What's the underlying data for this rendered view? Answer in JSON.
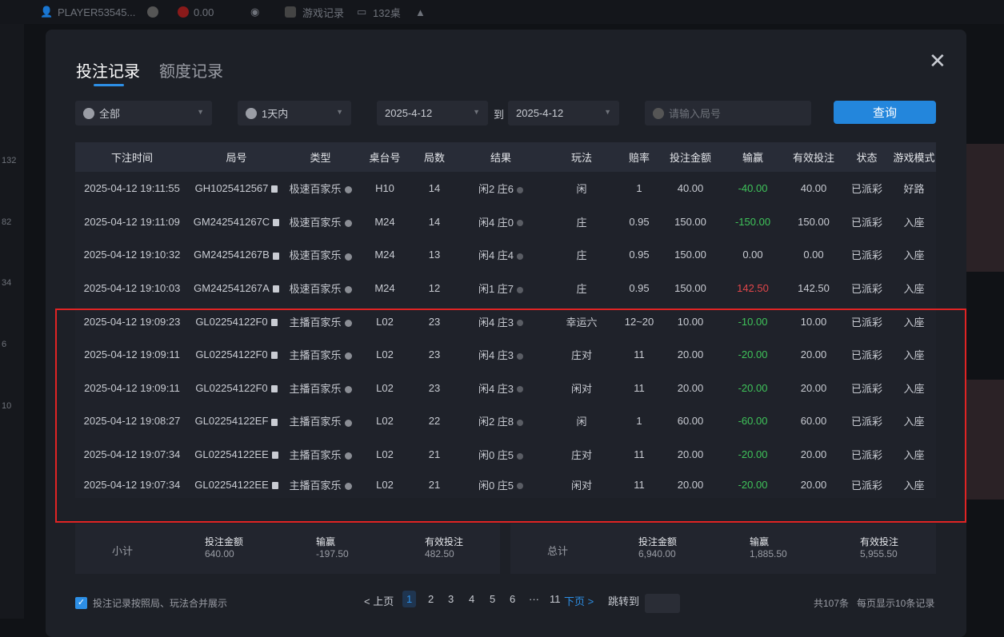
{
  "topbar": {
    "player": "PLAYER53545...",
    "balance": "0.00",
    "game_records": "游戏记录",
    "tables": "132桌"
  },
  "side_numbers": [
    "132",
    "82",
    "34",
    "6",
    "10"
  ],
  "tabs": [
    {
      "label": "投注记录",
      "active": true
    },
    {
      "label": "额度记录",
      "active": false
    }
  ],
  "filters": {
    "type": "全部",
    "period": "1天内",
    "date_from": "2025-4-12",
    "to_label": "到",
    "date_to": "2025-4-12",
    "round_placeholder": "请输入局号",
    "query_button": "查询"
  },
  "columns": [
    "下注时间",
    "局号",
    "类型",
    "桌台号",
    "局数",
    "结果",
    "玩法",
    "赔率",
    "投注金额",
    "输赢",
    "有效投注",
    "状态",
    "游戏模式"
  ],
  "rows": [
    [
      "2025-04-12 19:11:55",
      "GH1025412567",
      "极速百家乐",
      "H10",
      "14",
      "闲2 庄6",
      "闲",
      "1",
      "40.00",
      "-40.00",
      "40.00",
      "已派彩",
      "好路"
    ],
    [
      "2025-04-12 19:11:09",
      "GM242541267C",
      "极速百家乐",
      "M24",
      "14",
      "闲4 庄0",
      "庄",
      "0.95",
      "150.00",
      "-150.00",
      "150.00",
      "已派彩",
      "入座"
    ],
    [
      "2025-04-12 19:10:32",
      "GM242541267B",
      "极速百家乐",
      "M24",
      "13",
      "闲4 庄4",
      "庄",
      "0.95",
      "150.00",
      "0.00",
      "0.00",
      "已派彩",
      "入座"
    ],
    [
      "2025-04-12 19:10:03",
      "GM242541267A",
      "极速百家乐",
      "M24",
      "12",
      "闲1 庄7",
      "庄",
      "0.95",
      "150.00",
      "142.50",
      "142.50",
      "已派彩",
      "入座"
    ],
    [
      "2025-04-12 19:09:23",
      "GL02254122F0",
      "主播百家乐",
      "L02",
      "23",
      "闲4 庄3",
      "幸运六",
      "12~20",
      "10.00",
      "-10.00",
      "10.00",
      "已派彩",
      "入座"
    ],
    [
      "2025-04-12 19:09:11",
      "GL02254122F0",
      "主播百家乐",
      "L02",
      "23",
      "闲4 庄3",
      "庄对",
      "11",
      "20.00",
      "-20.00",
      "20.00",
      "已派彩",
      "入座"
    ],
    [
      "2025-04-12 19:09:11",
      "GL02254122F0",
      "主播百家乐",
      "L02",
      "23",
      "闲4 庄3",
      "闲对",
      "11",
      "20.00",
      "-20.00",
      "20.00",
      "已派彩",
      "入座"
    ],
    [
      "2025-04-12 19:08:27",
      "GL02254122EF",
      "主播百家乐",
      "L02",
      "22",
      "闲2 庄8",
      "闲",
      "1",
      "60.00",
      "-60.00",
      "60.00",
      "已派彩",
      "入座"
    ],
    [
      "2025-04-12 19:07:34",
      "GL02254122EE",
      "主播百家乐",
      "L02",
      "21",
      "闲0 庄5",
      "庄对",
      "11",
      "20.00",
      "-20.00",
      "20.00",
      "已派彩",
      "入座"
    ],
    [
      "2025-04-12 19:07:34",
      "GL02254122EE",
      "主播百家乐",
      "L02",
      "21",
      "闲0 庄5",
      "闲对",
      "11",
      "20.00",
      "-20.00",
      "20.00",
      "已派彩",
      "入座"
    ]
  ],
  "subtotal": {
    "label": "小计",
    "bet_label": "投注金额",
    "bet": "640.00",
    "win_label": "输赢",
    "win": "-197.50",
    "valid_label": "有效投注",
    "valid": "482.50"
  },
  "total": {
    "label": "总计",
    "bet_label": "投注金额",
    "bet": "6,940.00",
    "win_label": "输赢",
    "win": "1,885.50",
    "valid_label": "有效投注",
    "valid": "5,955.50"
  },
  "footer": {
    "merge_checkbox": "投注记录按照局、玩法合并展示",
    "merge_checked": true,
    "prev": "< 上页",
    "pages": [
      "1",
      "2",
      "3",
      "4",
      "5",
      "6",
      "···",
      "11"
    ],
    "current_page": "1",
    "next": "下页 >",
    "jump_label": "跳转到",
    "total_count": "共107条",
    "per_page": "每页显示10条记录"
  },
  "colors": {
    "accent": "#2386dc",
    "loss": "#3fc45a",
    "win": "#e0464a",
    "highlight_box": "#e02424"
  }
}
